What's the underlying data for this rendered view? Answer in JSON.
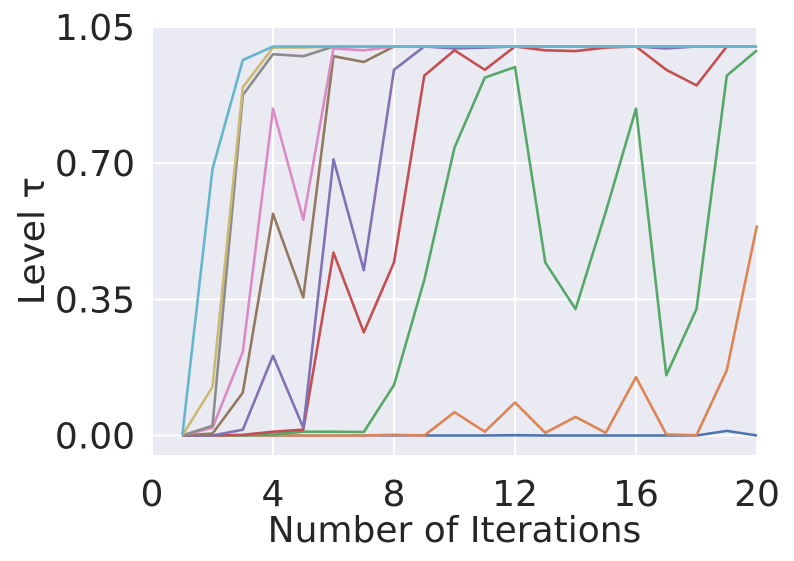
{
  "chart_data": {
    "type": "line",
    "title": "",
    "xlabel": "Number of Iterations",
    "ylabel": "Level τ",
    "xlim": [
      0,
      20
    ],
    "ylim": [
      -0.05,
      1.05
    ],
    "xticks": [
      0,
      4,
      8,
      12,
      16,
      20
    ],
    "yticks": [
      "0.00",
      "0.35",
      "0.70",
      "1.05"
    ],
    "ytick_values": [
      0,
      0.35,
      0.7,
      1.05
    ],
    "grid": true,
    "background": "#eaeaf2",
    "x": [
      1,
      2,
      3,
      4,
      5,
      6,
      7,
      8,
      9,
      10,
      11,
      12,
      13,
      14,
      15,
      16,
      17,
      18,
      19,
      20
    ],
    "series": [
      {
        "color": "#4c72b0",
        "values": [
          0,
          0,
          0,
          0,
          0,
          0,
          0,
          0,
          0,
          0,
          0,
          0.001,
          0,
          0,
          0,
          0,
          0,
          0,
          0.012,
          0
        ]
      },
      {
        "color": "#dd8452",
        "values": [
          0,
          0,
          0,
          0,
          0,
          0,
          0,
          0.002,
          0,
          0.06,
          0.01,
          0.085,
          0.007,
          0.048,
          0.007,
          0.15,
          0.003,
          0.001,
          0.168,
          0.54
        ]
      },
      {
        "color": "#55a868",
        "values": [
          0,
          0,
          0,
          0.003,
          0.01,
          0.01,
          0.009,
          0.13,
          0.4,
          0.74,
          0.92,
          0.947,
          0.445,
          0.325,
          0.575,
          0.84,
          0.155,
          0.325,
          0.925,
          0.99
        ]
      },
      {
        "color": "#c44e52",
        "values": [
          0,
          0,
          0.002,
          0.01,
          0.015,
          0.47,
          0.265,
          0.445,
          0.925,
          0.99,
          0.94,
          1.0,
          0.99,
          0.988,
          0.997,
          1.0,
          0.94,
          0.9,
          1.0,
          1.0
        ]
      },
      {
        "color": "#8172b3",
        "values": [
          0,
          0,
          0.015,
          0.205,
          0.02,
          0.71,
          0.425,
          0.94,
          1.0,
          0.995,
          0.997,
          1.0,
          1.0,
          1.0,
          1.0,
          1.0,
          0.995,
          1.0,
          1.0,
          1.0
        ]
      },
      {
        "color": "#937860",
        "values": [
          0,
          0.005,
          0.11,
          0.57,
          0.355,
          0.975,
          0.96,
          1.0,
          1.0,
          1.0,
          1.0,
          1.0,
          1.0,
          1.0,
          1.0,
          1.0,
          1.0,
          1.0,
          1.0,
          1.0
        ]
      },
      {
        "color": "#da8bc3",
        "values": [
          0,
          0.02,
          0.215,
          0.84,
          0.555,
          0.995,
          0.99,
          1.0,
          1.0,
          1.0,
          1.0,
          1.0,
          1.0,
          1.0,
          1.0,
          1.0,
          1.0,
          1.0,
          1.0,
          1.0
        ]
      },
      {
        "color": "#8c8c8c",
        "values": [
          0,
          0.025,
          0.875,
          0.98,
          0.975,
          1.0,
          1.0,
          1.0,
          1.0,
          1.0,
          1.0,
          1.0,
          1.0,
          1.0,
          1.0,
          1.0,
          1.0,
          1.0,
          1.0,
          1.0
        ]
      },
      {
        "color": "#ccb974",
        "values": [
          0,
          0.125,
          0.895,
          0.997,
          0.997,
          1.0,
          1.0,
          1.0,
          1.0,
          1.0,
          1.0,
          1.0,
          1.0,
          1.0,
          1.0,
          1.0,
          1.0,
          1.0,
          1.0,
          1.0
        ]
      },
      {
        "color": "#64b5cd",
        "values": [
          0,
          0.685,
          0.965,
          1.0,
          1.0,
          1.0,
          1.0,
          1.0,
          1.0,
          1.0,
          1.0,
          1.0,
          1.0,
          1.0,
          1.0,
          1.0,
          1.0,
          1.0,
          1.0,
          1.0
        ]
      }
    ]
  }
}
